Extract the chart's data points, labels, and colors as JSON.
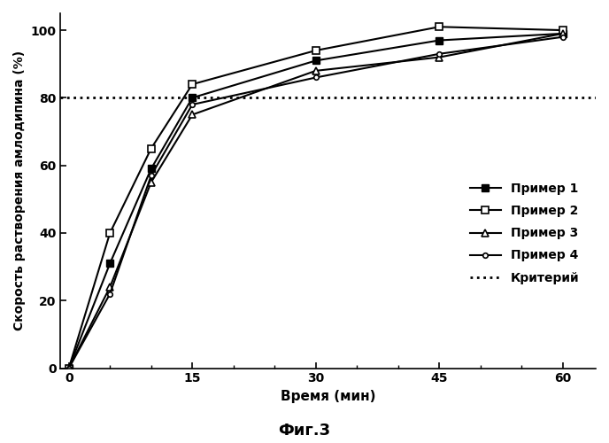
{
  "x": [
    0,
    5,
    10,
    15,
    30,
    45,
    60
  ],
  "primer1": [
    0,
    31,
    59,
    80,
    91,
    97,
    99
  ],
  "primer2": [
    0,
    40,
    65,
    84,
    94,
    101,
    100
  ],
  "primer3": [
    0,
    24,
    55,
    75,
    88,
    92,
    99
  ],
  "primer4": [
    0,
    22,
    57,
    78,
    86,
    93,
    98
  ],
  "criterion_y": 80,
  "xlabel": "Время (мин)",
  "ylabel": "Скорость растворения амлодипина (%)",
  "caption": "Фиг.3",
  "legend_labels": [
    "Пример 1",
    "Пример 2",
    "Пример 3",
    "Пример 4",
    "Критерий"
  ],
  "ylim": [
    0,
    105
  ],
  "xlim": [
    -1,
    64
  ],
  "xticks": [
    0,
    15,
    30,
    45,
    60
  ],
  "yticks": [
    0,
    20,
    40,
    60,
    80,
    100
  ],
  "color": "#000000",
  "bg_color": "#ffffff",
  "linewidth": 1.5,
  "markersize": 6
}
